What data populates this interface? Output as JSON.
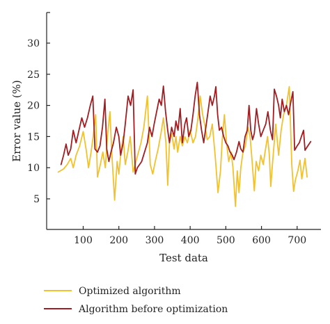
{
  "chart_data": {
    "type": "line",
    "xlabel": "Test data",
    "ylabel": "Error value (%)",
    "xlim": [
      0,
      750
    ],
    "ylim": [
      0,
      35
    ],
    "x_ticks": [
      100,
      200,
      300,
      400,
      500,
      600,
      700
    ],
    "y_ticks": [
      5,
      10,
      15,
      20,
      25,
      30
    ],
    "legend_position": "bottom",
    "grid": false,
    "series": [
      {
        "name": "Optimized algorithm",
        "color": "#F2C12E",
        "points": [
          [
            30,
            9.3
          ],
          [
            45,
            9.8
          ],
          [
            55,
            10.5
          ],
          [
            65,
            11.5
          ],
          [
            72,
            10
          ],
          [
            80,
            12
          ],
          [
            90,
            13.5
          ],
          [
            100,
            15.8
          ],
          [
            108,
            13
          ],
          [
            115,
            10
          ],
          [
            122,
            12.5
          ],
          [
            128,
            15
          ],
          [
            135,
            18.5
          ],
          [
            140,
            8.5
          ],
          [
            148,
            10.5
          ],
          [
            155,
            12.5
          ],
          [
            162,
            10
          ],
          [
            168,
            15
          ],
          [
            175,
            19
          ],
          [
            180,
            12.5
          ],
          [
            188,
            4.8
          ],
          [
            195,
            11
          ],
          [
            200,
            9
          ],
          [
            205,
            12
          ],
          [
            212,
            15
          ],
          [
            218,
            10.5
          ],
          [
            225,
            12.5
          ],
          [
            232,
            15
          ],
          [
            240,
            9.3
          ],
          [
            248,
            11
          ],
          [
            255,
            12.5
          ],
          [
            262,
            14
          ],
          [
            270,
            16.5
          ],
          [
            280,
            21.5
          ],
          [
            288,
            10.5
          ],
          [
            295,
            9
          ],
          [
            302,
            11
          ],
          [
            310,
            13
          ],
          [
            318,
            15.5
          ],
          [
            325,
            18
          ],
          [
            332,
            14
          ],
          [
            337,
            7.2
          ],
          [
            342,
            14
          ],
          [
            348,
            15.5
          ],
          [
            355,
            13
          ],
          [
            360,
            15
          ],
          [
            365,
            12.5
          ],
          [
            372,
            15
          ],
          [
            378,
            13.5
          ],
          [
            385,
            15
          ],
          [
            392,
            14
          ],
          [
            400,
            16
          ],
          [
            408,
            14
          ],
          [
            415,
            15
          ],
          [
            422,
            18
          ],
          [
            428,
            21.5
          ],
          [
            435,
            18.5
          ],
          [
            442,
            16.5
          ],
          [
            448,
            14.5
          ],
          [
            455,
            15
          ],
          [
            462,
            17
          ],
          [
            470,
            12
          ],
          [
            478,
            6
          ],
          [
            485,
            9.5
          ],
          [
            490,
            14.5
          ],
          [
            496,
            18.5
          ],
          [
            502,
            14
          ],
          [
            508,
            11
          ],
          [
            515,
            12.5
          ],
          [
            520,
            10
          ],
          [
            527,
            3.8
          ],
          [
            532,
            9.5
          ],
          [
            537,
            6
          ],
          [
            542,
            10
          ],
          [
            548,
            12.5
          ],
          [
            555,
            13.5
          ],
          [
            562,
            16.5
          ],
          [
            568,
            15
          ],
          [
            573,
            11.5
          ],
          [
            580,
            6.3
          ],
          [
            585,
            11
          ],
          [
            592,
            9.5
          ],
          [
            598,
            12
          ],
          [
            605,
            10.5
          ],
          [
            610,
            12.5
          ],
          [
            617,
            15
          ],
          [
            622,
            12
          ],
          [
            626,
            7
          ],
          [
            632,
            11.5
          ],
          [
            640,
            17
          ],
          [
            648,
            12
          ],
          [
            655,
            16
          ],
          [
            662,
            18.5
          ],
          [
            670,
            20
          ],
          [
            678,
            23
          ],
          [
            685,
            10.5
          ],
          [
            690,
            6.2
          ],
          [
            695,
            8
          ],
          [
            702,
            9.5
          ],
          [
            708,
            11.2
          ],
          [
            713,
            8.2
          ],
          [
            718,
            10
          ],
          [
            722,
            11.5
          ],
          [
            728,
            8.5
          ]
        ]
      },
      {
        "name": "Algorithm before optimization",
        "color": "#A11D21",
        "points": [
          [
            38,
            10.5
          ],
          [
            45,
            12
          ],
          [
            52,
            13.8
          ],
          [
            58,
            12
          ],
          [
            65,
            13
          ],
          [
            72,
            16
          ],
          [
            80,
            14
          ],
          [
            88,
            16
          ],
          [
            96,
            18
          ],
          [
            104,
            16.5
          ],
          [
            112,
            18
          ],
          [
            120,
            20
          ],
          [
            127,
            21.5
          ],
          [
            133,
            13
          ],
          [
            140,
            12.5
          ],
          [
            147,
            13.5
          ],
          [
            154,
            16.5
          ],
          [
            161,
            21
          ],
          [
            166,
            13
          ],
          [
            172,
            11
          ],
          [
            178,
            12.5
          ],
          [
            185,
            14
          ],
          [
            193,
            16.5
          ],
          [
            200,
            15
          ],
          [
            205,
            12
          ],
          [
            212,
            14
          ],
          [
            218,
            17
          ],
          [
            226,
            21.5
          ],
          [
            233,
            20
          ],
          [
            240,
            22.5
          ],
          [
            246,
            9
          ],
          [
            252,
            10
          ],
          [
            258,
            10.5
          ],
          [
            264,
            11
          ],
          [
            272,
            12.5
          ],
          [
            280,
            14
          ],
          [
            286,
            16.5
          ],
          [
            293,
            15
          ],
          [
            299,
            17
          ],
          [
            306,
            19
          ],
          [
            313,
            21
          ],
          [
            319,
            20
          ],
          [
            325,
            23.1
          ],
          [
            331,
            19
          ],
          [
            337,
            16
          ],
          [
            342,
            14
          ],
          [
            348,
            16.5
          ],
          [
            355,
            15
          ],
          [
            360,
            17.5
          ],
          [
            366,
            16
          ],
          [
            372,
            19.5
          ],
          [
            378,
            14
          ],
          [
            385,
            17
          ],
          [
            390,
            18
          ],
          [
            396,
            15
          ],
          [
            402,
            16
          ],
          [
            408,
            18.5
          ],
          [
            414,
            21.5
          ],
          [
            420,
            23.7
          ],
          [
            426,
            18.5
          ],
          [
            432,
            16
          ],
          [
            438,
            14
          ],
          [
            444,
            16.5
          ],
          [
            450,
            19
          ],
          [
            456,
            21.5
          ],
          [
            462,
            20
          ],
          [
            468,
            21.5
          ],
          [
            472,
            23
          ],
          [
            477,
            18.5
          ],
          [
            482,
            16
          ],
          [
            488,
            16.5
          ],
          [
            494,
            15
          ],
          [
            500,
            14
          ],
          [
            506,
            13.5
          ],
          [
            512,
            12.5
          ],
          [
            518,
            12
          ],
          [
            523,
            11.3
          ],
          [
            530,
            12.5
          ],
          [
            537,
            14.2
          ],
          [
            542,
            13
          ],
          [
            548,
            12.5
          ],
          [
            554,
            15
          ],
          [
            560,
            16
          ],
          [
            565,
            20
          ],
          [
            570,
            16
          ],
          [
            575,
            14.5
          ],
          [
            580,
            15.5
          ],
          [
            586,
            19.5
          ],
          [
            592,
            17
          ],
          [
            598,
            15
          ],
          [
            605,
            16
          ],
          [
            612,
            17
          ],
          [
            618,
            19
          ],
          [
            625,
            16
          ],
          [
            631,
            14.5
          ],
          [
            636,
            22.6
          ],
          [
            642,
            21.5
          ],
          [
            648,
            20
          ],
          [
            653,
            18
          ],
          [
            658,
            21
          ],
          [
            664,
            19
          ],
          [
            670,
            20
          ],
          [
            676,
            18.5
          ],
          [
            682,
            20.5
          ],
          [
            688,
            22.2
          ],
          [
            693,
            12.8
          ],
          [
            700,
            13.5
          ],
          [
            706,
            14
          ],
          [
            712,
            15
          ],
          [
            718,
            16
          ],
          [
            722,
            12.8
          ],
          [
            730,
            13.5
          ],
          [
            738,
            14.2
          ]
        ]
      }
    ]
  }
}
